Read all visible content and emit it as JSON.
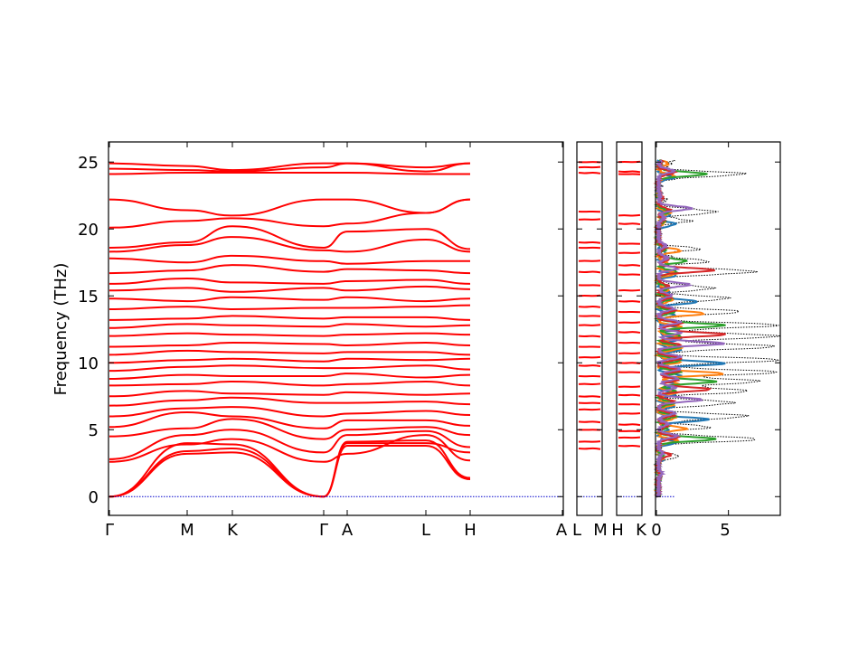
{
  "chart_data": {
    "type": "line",
    "title": "",
    "ylabel": "Frequency (THz)",
    "ylim": [
      -1.4,
      26.5
    ],
    "yticks": [
      0,
      5,
      10,
      15,
      20,
      25
    ],
    "band_color": "#ff0000",
    "zero_line_color": "#0000cc",
    "panels": [
      {
        "id": "main",
        "labels": [
          "Γ",
          "M",
          "K",
          "Γ",
          "A",
          "L",
          "H",
          "A"
        ]
      },
      {
        "id": "LM",
        "labels": [
          "L",
          "M"
        ]
      },
      {
        "id": "HK",
        "labels": [
          "H",
          "K"
        ]
      }
    ],
    "dos": {
      "xlabel_ticks": [
        0,
        5
      ],
      "xlim": [
        0,
        8.6
      ],
      "total_color": "#000000",
      "partial_colors": [
        "#1f77b4",
        "#ff7f0e",
        "#2ca02c",
        "#d62728",
        "#9467bd"
      ],
      "peaks": [
        {
          "f": 0.0,
          "total": 0.0
        },
        {
          "f": 1.5,
          "total": 0.4
        },
        {
          "f": 3.0,
          "total": 1.5
        },
        {
          "f": 4.3,
          "total": 7.2
        },
        {
          "f": 5.2,
          "total": 3.5
        },
        {
          "f": 6.0,
          "total": 6.4
        },
        {
          "f": 7.0,
          "total": 5.5
        },
        {
          "f": 7.9,
          "total": 6.5
        },
        {
          "f": 8.6,
          "total": 7.2
        },
        {
          "f": 9.3,
          "total": 8.3
        },
        {
          "f": 10.2,
          "total": 8.5
        },
        {
          "f": 11.2,
          "total": 8.3
        },
        {
          "f": 12.0,
          "total": 8.5
        },
        {
          "f": 12.8,
          "total": 8.4
        },
        {
          "f": 13.8,
          "total": 5.8
        },
        {
          "f": 14.8,
          "total": 5.0
        },
        {
          "f": 15.6,
          "total": 3.9
        },
        {
          "f": 16.8,
          "total": 7.0
        },
        {
          "f": 17.6,
          "total": 3.5
        },
        {
          "f": 18.5,
          "total": 2.8
        },
        {
          "f": 20.6,
          "total": 2.1
        },
        {
          "f": 21.3,
          "total": 4.2
        },
        {
          "f": 22.2,
          "total": 0.5
        },
        {
          "f": 24.1,
          "total": 6.0
        },
        {
          "f": 25.0,
          "total": 1.2
        }
      ]
    },
    "bands": [
      {
        "pts": [
          [
            0,
            0
          ],
          [
            0.5,
            3.2
          ],
          [
            1,
            3.3
          ],
          [
            2.2,
            0
          ],
          [
            3,
            3.8
          ],
          [
            4.2,
            3.8
          ],
          [
            5,
            1.3
          ]
        ]
      },
      {
        "pts": [
          [
            0,
            0
          ],
          [
            0.5,
            3.4
          ],
          [
            1,
            3.6
          ],
          [
            2.2,
            0
          ],
          [
            3,
            4.1
          ],
          [
            4.2,
            4.2
          ],
          [
            5,
            1.4
          ]
        ]
      },
      {
        "pts": [
          [
            0,
            0
          ],
          [
            0.5,
            4.0
          ],
          [
            1,
            3.9
          ],
          [
            2.2,
            0
          ],
          [
            3,
            4.0
          ],
          [
            4.2,
            4.0
          ],
          [
            5,
            3.3
          ]
        ]
      },
      {
        "pts": [
          [
            0,
            2.6
          ],
          [
            0.5,
            3.9
          ],
          [
            1,
            4.3
          ],
          [
            2.2,
            2.6
          ],
          [
            3,
            3.2
          ],
          [
            4.2,
            4.6
          ],
          [
            5,
            2.7
          ]
        ]
      },
      {
        "pts": [
          [
            0,
            2.8
          ],
          [
            0.5,
            4.6
          ],
          [
            1,
            5.0
          ],
          [
            2.2,
            3.3
          ],
          [
            3,
            4.6
          ],
          [
            4.2,
            4.9
          ],
          [
            5,
            3.7
          ]
        ]
      },
      {
        "pts": [
          [
            0,
            4.5
          ],
          [
            0.5,
            5.1
          ],
          [
            1,
            5.8
          ],
          [
            2.2,
            4.3
          ],
          [
            3,
            5.0
          ],
          [
            4.2,
            5.2
          ],
          [
            5,
            4.6
          ]
        ]
      },
      {
        "pts": [
          [
            0,
            5.2
          ],
          [
            0.5,
            6.3
          ],
          [
            1,
            6.0
          ],
          [
            2.2,
            5.1
          ],
          [
            3,
            5.7
          ],
          [
            4.2,
            5.7
          ],
          [
            5,
            5.3
          ]
        ]
      },
      {
        "pts": [
          [
            0,
            6.0
          ],
          [
            0.5,
            6.6
          ],
          [
            1,
            6.7
          ],
          [
            2.2,
            6.0
          ],
          [
            3,
            6.2
          ],
          [
            4.2,
            6.4
          ],
          [
            5,
            6.1
          ]
        ]
      },
      {
        "pts": [
          [
            0,
            6.8
          ],
          [
            0.5,
            7.2
          ],
          [
            1,
            7.4
          ],
          [
            2.2,
            7.0
          ],
          [
            3,
            7.0
          ],
          [
            4.2,
            7.1
          ],
          [
            5,
            6.9
          ]
        ]
      },
      {
        "pts": [
          [
            0,
            7.5
          ],
          [
            0.5,
            7.9
          ],
          [
            1,
            7.7
          ],
          [
            2.2,
            7.6
          ],
          [
            3,
            7.8
          ],
          [
            4.2,
            7.6
          ],
          [
            5,
            7.7
          ]
        ]
      },
      {
        "pts": [
          [
            0,
            8.3
          ],
          [
            0.5,
            8.4
          ],
          [
            1,
            8.6
          ],
          [
            2.2,
            8.3
          ],
          [
            3,
            8.4
          ],
          [
            4.2,
            8.6
          ],
          [
            5,
            8.3
          ]
        ]
      },
      {
        "pts": [
          [
            0,
            8.8
          ],
          [
            0.5,
            9.1
          ],
          [
            1,
            9.0
          ],
          [
            2.2,
            9.0
          ],
          [
            3,
            9.2
          ],
          [
            4.2,
            8.9
          ],
          [
            5,
            9.1
          ]
        ]
      },
      {
        "pts": [
          [
            0,
            9.4
          ],
          [
            0.5,
            9.7
          ],
          [
            1,
            9.8
          ],
          [
            2.2,
            9.6
          ],
          [
            3,
            9.6
          ],
          [
            4.2,
            9.8
          ],
          [
            5,
            9.5
          ]
        ]
      },
      {
        "pts": [
          [
            0,
            10.0
          ],
          [
            0.5,
            10.2
          ],
          [
            1,
            10.3
          ],
          [
            2.2,
            10.1
          ],
          [
            3,
            10.3
          ],
          [
            4.2,
            10.2
          ],
          [
            5,
            10.3
          ]
        ]
      },
      {
        "pts": [
          [
            0,
            10.6
          ],
          [
            0.5,
            10.9
          ],
          [
            1,
            10.8
          ],
          [
            2.2,
            10.7
          ],
          [
            3,
            10.8
          ],
          [
            4.2,
            10.8
          ],
          [
            5,
            10.6
          ]
        ]
      },
      {
        "pts": [
          [
            0,
            11.2
          ],
          [
            0.5,
            11.3
          ],
          [
            1,
            11.5
          ],
          [
            2.2,
            11.4
          ],
          [
            3,
            11.3
          ],
          [
            4.2,
            11.5
          ],
          [
            5,
            11.3
          ]
        ]
      },
      {
        "pts": [
          [
            0,
            12.0
          ],
          [
            0.5,
            12.2
          ],
          [
            1,
            12.1
          ],
          [
            2.2,
            12.0
          ],
          [
            3,
            12.1
          ],
          [
            4.2,
            12.2
          ],
          [
            5,
            12.1
          ]
        ]
      },
      {
        "pts": [
          [
            0,
            12.6
          ],
          [
            0.5,
            12.9
          ],
          [
            1,
            12.8
          ],
          [
            2.2,
            12.7
          ],
          [
            3,
            12.9
          ],
          [
            4.2,
            12.7
          ],
          [
            5,
            12.8
          ]
        ]
      },
      {
        "pts": [
          [
            0,
            13.2
          ],
          [
            0.5,
            13.3
          ],
          [
            1,
            13.5
          ],
          [
            2.2,
            13.3
          ],
          [
            3,
            13.4
          ],
          [
            4.2,
            13.4
          ],
          [
            5,
            13.2
          ]
        ]
      },
      {
        "pts": [
          [
            0,
            14.0
          ],
          [
            0.5,
            14.2
          ],
          [
            1,
            14.0
          ],
          [
            2.2,
            14.1
          ],
          [
            3,
            14.1
          ],
          [
            4.2,
            14.2
          ],
          [
            5,
            14.3
          ]
        ]
      },
      {
        "pts": [
          [
            0,
            14.8
          ],
          [
            0.5,
            14.6
          ],
          [
            1,
            14.9
          ],
          [
            2.2,
            14.7
          ],
          [
            3,
            14.9
          ],
          [
            4.2,
            14.6
          ],
          [
            5,
            14.8
          ]
        ]
      },
      {
        "pts": [
          [
            0,
            15.4
          ],
          [
            0.5,
            15.6
          ],
          [
            1,
            15.3
          ],
          [
            2.2,
            15.6
          ],
          [
            3,
            15.4
          ],
          [
            4.2,
            15.7
          ],
          [
            5,
            15.5
          ]
        ]
      },
      {
        "pts": [
          [
            0,
            15.9
          ],
          [
            0.5,
            16.3
          ],
          [
            1,
            16.0
          ],
          [
            2.2,
            15.9
          ],
          [
            3,
            16.1
          ],
          [
            4.2,
            16.2
          ],
          [
            5,
            15.9
          ]
        ]
      },
      {
        "pts": [
          [
            0,
            16.7
          ],
          [
            0.5,
            16.9
          ],
          [
            1,
            17.3
          ],
          [
            2.2,
            16.8
          ],
          [
            3,
            17.0
          ],
          [
            4.2,
            16.9
          ],
          [
            5,
            16.7
          ]
        ]
      },
      {
        "pts": [
          [
            0,
            17.8
          ],
          [
            0.5,
            17.5
          ],
          [
            1,
            18.0
          ],
          [
            2.2,
            17.6
          ],
          [
            3,
            17.4
          ],
          [
            4.2,
            17.6
          ],
          [
            5,
            17.6
          ]
        ]
      },
      {
        "pts": [
          [
            0,
            18.3
          ],
          [
            0.5,
            18.8
          ],
          [
            1,
            19.4
          ],
          [
            2.2,
            18.4
          ],
          [
            3,
            18.3
          ],
          [
            4.2,
            19.2
          ],
          [
            5,
            18.3
          ]
        ]
      },
      {
        "pts": [
          [
            0,
            18.6
          ],
          [
            0.5,
            19.0
          ],
          [
            1,
            20.2
          ],
          [
            2.2,
            18.6
          ],
          [
            3,
            19.8
          ],
          [
            4.2,
            20.0
          ],
          [
            5,
            18.5
          ]
        ]
      },
      {
        "pts": [
          [
            0,
            20.1
          ],
          [
            0.5,
            20.6
          ],
          [
            1,
            20.8
          ],
          [
            2.2,
            20.2
          ],
          [
            3,
            20.4
          ],
          [
            4.2,
            21.2
          ],
          [
            5,
            22.2
          ]
        ]
      },
      {
        "pts": [
          [
            0,
            22.2
          ],
          [
            0.5,
            21.4
          ],
          [
            1,
            21.0
          ],
          [
            2.2,
            22.2
          ],
          [
            3,
            22.2
          ],
          [
            4.2,
            21.2
          ],
          [
            5,
            22.2
          ]
        ]
      },
      {
        "pts": [
          [
            0,
            24.1
          ],
          [
            0.5,
            24.2
          ],
          [
            1,
            24.2
          ],
          [
            2.2,
            24.2
          ],
          [
            3,
            24.2
          ],
          [
            4.2,
            24.1
          ],
          [
            5,
            24.1
          ]
        ]
      },
      {
        "pts": [
          [
            0,
            24.5
          ],
          [
            0.5,
            24.4
          ],
          [
            1,
            24.3
          ],
          [
            2.2,
            24.6
          ],
          [
            3,
            24.9
          ],
          [
            4.2,
            24.3
          ],
          [
            5,
            24.9
          ]
        ]
      },
      {
        "pts": [
          [
            0,
            24.9
          ],
          [
            0.5,
            24.7
          ],
          [
            1,
            24.4
          ],
          [
            2.2,
            24.9
          ],
          [
            3,
            24.9
          ],
          [
            4.2,
            24.6
          ],
          [
            5,
            24.9
          ]
        ]
      }
    ],
    "lm_levels": [
      3.6,
      4.1,
      5.0,
      5.6,
      6.5,
      7.0,
      7.5,
      8.4,
      9.0,
      9.8,
      10.4,
      11.2,
      12.0,
      12.8,
      13.5,
      14.2,
      15.0,
      15.8,
      16.8,
      17.6,
      18.6,
      19.0,
      20.7,
      21.3,
      24.2,
      24.6,
      25.0
    ],
    "hk_levels": [
      3.8,
      4.4,
      4.9,
      5.4,
      6.2,
      6.9,
      7.6,
      8.2,
      9.3,
      10.0,
      10.7,
      11.5,
      12.3,
      13.0,
      13.8,
      14.6,
      15.4,
      16.6,
      17.3,
      18.2,
      18.9,
      20.4,
      21.0,
      24.1,
      24.3,
      25.0
    ]
  }
}
